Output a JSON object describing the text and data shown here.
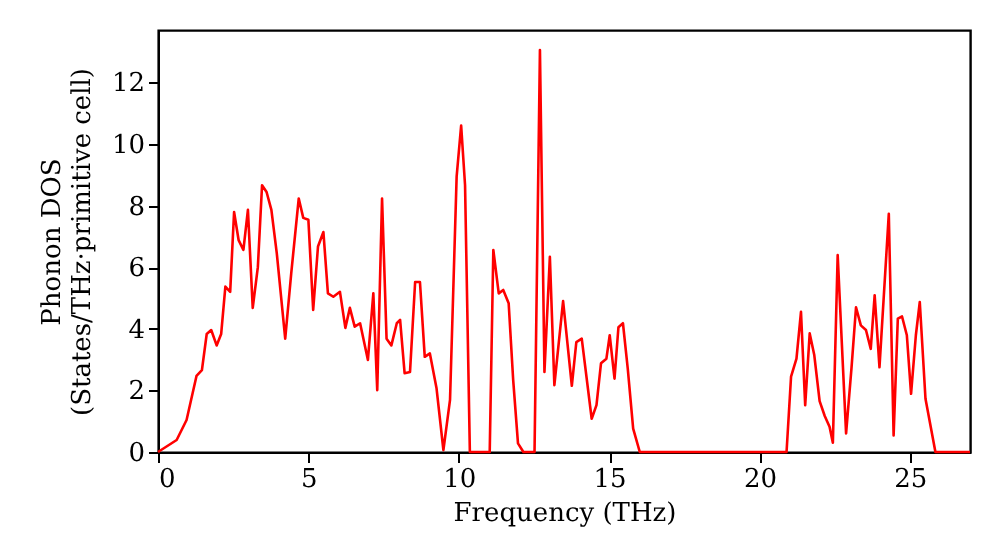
{
  "chart_data": {
    "type": "line",
    "xlabel": "Frequency (THz)",
    "ylabel": "Phonon DOS\n(States/THz·primitive cell)",
    "x": [
      0,
      0.62,
      0.95,
      1.28,
      1.46,
      1.62,
      1.77,
      1.95,
      2.1,
      2.24,
      2.4,
      2.53,
      2.68,
      2.84,
      2.99,
      3.15,
      3.32,
      3.46,
      3.61,
      3.77,
      3.95,
      4.23,
      4.43,
      4.68,
      4.83,
      5.0,
      5.16,
      5.32,
      5.5,
      5.65,
      5.83,
      6.05,
      6.23,
      6.38,
      6.54,
      6.72,
      6.98,
      7.16,
      7.29,
      7.45,
      7.6,
      7.76,
      7.94,
      8.05,
      8.2,
      8.38,
      8.55,
      8.71,
      8.87,
      9.04,
      9.26,
      9.49,
      9.71,
      9.93,
      10.08,
      10.21,
      10.37,
      11.03,
      11.15,
      11.33,
      11.48,
      11.66,
      11.81,
      11.97,
      12.15,
      12.52,
      12.7,
      12.85,
      13.03,
      13.18,
      13.47,
      13.76,
      13.91,
      14.09,
      14.42,
      14.58,
      14.73,
      14.91,
      15.02,
      15.18,
      15.31,
      15.46,
      15.62,
      15.8,
      16.02,
      20.9,
      21.05,
      21.23,
      21.38,
      21.52,
      21.67,
      21.82,
      22.0,
      22.17,
      22.33,
      22.44,
      22.6,
      22.88,
      23.06,
      23.21,
      23.37,
      23.54,
      23.7,
      23.83,
      23.99,
      24.3,
      24.46,
      24.6,
      24.74,
      24.9,
      25.04,
      25.2,
      25.33,
      25.52,
      25.85,
      27.0
    ],
    "series": [
      {
        "color": "#ff0000",
        "values": [
          0,
          0.39,
          1.04,
          2.47,
          2.66,
          3.83,
          3.96,
          3.46,
          3.83,
          5.37,
          5.2,
          7.79,
          6.88,
          6.56,
          7.86,
          4.68,
          6.0,
          8.66,
          8.44,
          7.86,
          6.45,
          3.68,
          5.8,
          8.23,
          7.6,
          7.54,
          4.61,
          6.67,
          7.14,
          5.15,
          5.04,
          5.2,
          4.03,
          4.68,
          4.07,
          4.18,
          2.99,
          5.15,
          2.01,
          8.23,
          3.68,
          3.46,
          4.18,
          4.29,
          2.56,
          2.6,
          5.52,
          5.52,
          3.09,
          3.2,
          2.08,
          0.06,
          1.69,
          8.94,
          10.6,
          8.66,
          0,
          0,
          6.56,
          5.15,
          5.26,
          4.83,
          2.34,
          0.28,
          0,
          0,
          13.05,
          2.6,
          6.34,
          2.17,
          4.9,
          2.15,
          3.57,
          3.68,
          1.08,
          1.52,
          2.88,
          3.03,
          3.79,
          2.38,
          4.05,
          4.18,
          2.71,
          0.76,
          0,
          0,
          2.45,
          3.03,
          4.55,
          1.52,
          3.85,
          3.16,
          1.65,
          1.17,
          0.82,
          0.3,
          6.39,
          0.6,
          2.73,
          4.7,
          4.11,
          3.96,
          3.35,
          5.09,
          2.75,
          7.73,
          0.54,
          4.33,
          4.4,
          3.79,
          1.89,
          3.79,
          4.87,
          1.73,
          0,
          0
        ]
      }
    ],
    "xlim": [
      0,
      27.0
    ],
    "xticks": [
      0,
      5,
      10,
      15,
      20,
      25
    ],
    "ylim": [
      0,
      13.7
    ],
    "yticks": [
      0,
      2,
      4,
      6,
      8,
      10,
      12
    ],
    "grid": false,
    "marker": "none",
    "line_style": "solid"
  }
}
